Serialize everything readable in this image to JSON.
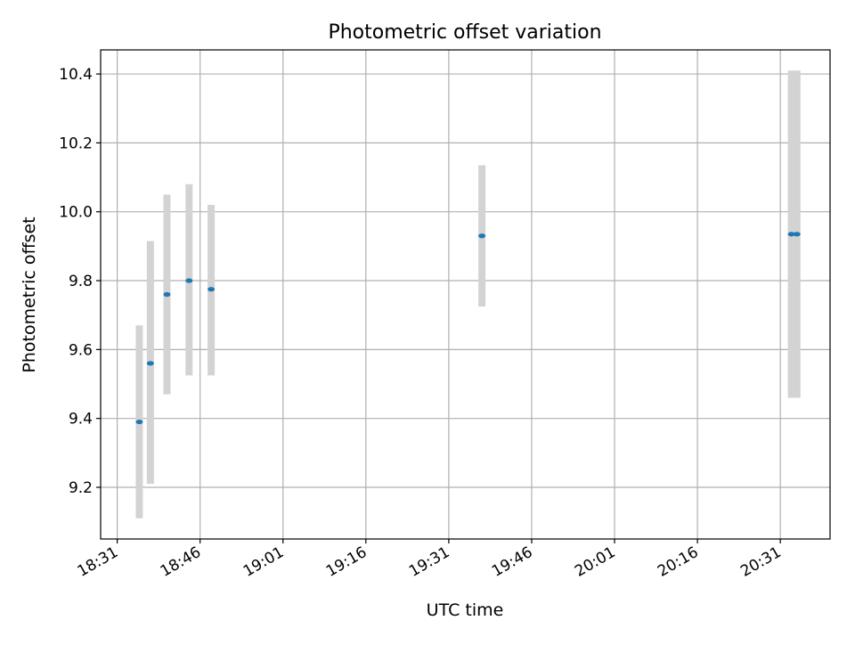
{
  "chart_data": {
    "type": "scatter",
    "title": "Photometric offset variation",
    "xlabel": "UTC time",
    "ylabel": "Photometric offset",
    "x_ticks": [
      "18:31",
      "18:46",
      "19:01",
      "19:16",
      "19:31",
      "19:46",
      "20:01",
      "20:16",
      "20:31"
    ],
    "y_ticks": [
      "9.2",
      "9.4",
      "9.6",
      "9.8",
      "10.0",
      "10.2",
      "10.4"
    ],
    "xlim": [
      "18:28",
      "20:40"
    ],
    "ylim": [
      9.05,
      10.47
    ],
    "grid": true,
    "legend": "none",
    "point_color": "#1f77b4",
    "errorbar_color": "#d3d3d3",
    "series": [
      {
        "points": [
          {
            "time": "18:35",
            "y": 9.39,
            "low": 9.11,
            "high": 9.67
          },
          {
            "time": "18:37",
            "y": 9.56,
            "low": 9.21,
            "high": 9.915
          },
          {
            "time": "18:40",
            "y": 9.76,
            "low": 9.47,
            "high": 10.05
          },
          {
            "time": "18:44",
            "y": 9.8,
            "low": 9.525,
            "high": 10.08
          },
          {
            "time": "18:48",
            "y": 9.775,
            "low": 9.525,
            "high": 10.02
          },
          {
            "time": "19:37",
            "y": 9.93,
            "low": 9.725,
            "high": 10.135
          },
          {
            "time": "20:33",
            "y": 9.935,
            "low": 9.46,
            "high": 10.41
          },
          {
            "time": "20:34",
            "y": 9.935,
            "low": 9.46,
            "high": 10.41
          }
        ]
      }
    ]
  }
}
